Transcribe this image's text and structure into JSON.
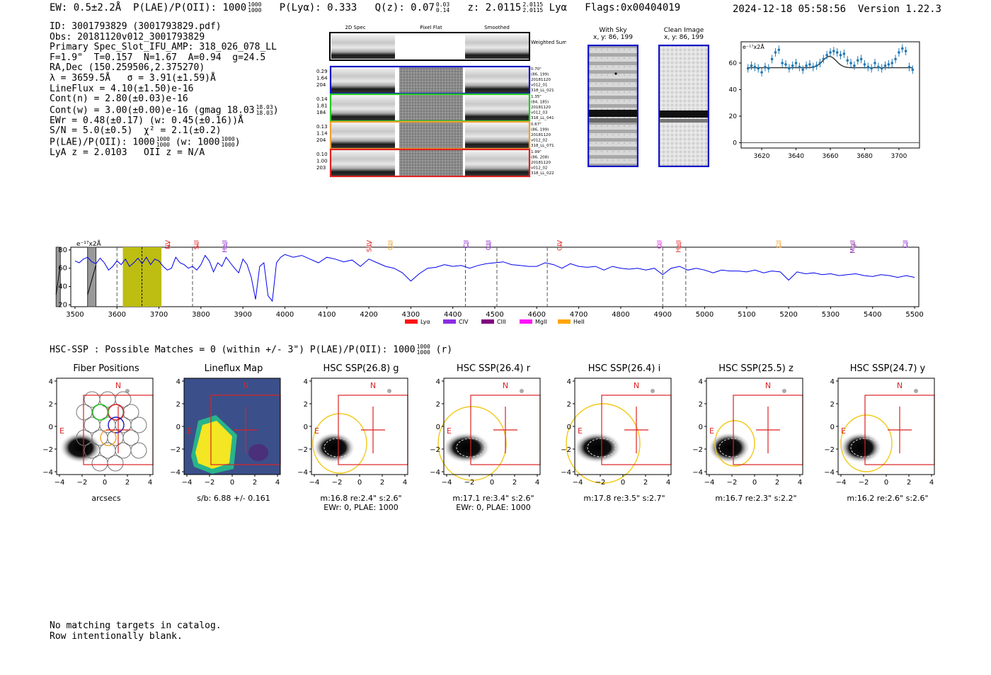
{
  "header": {
    "ew": "EW: 0.5±2.2Å",
    "plae_label": "P(LAE)/P(OII): 1000",
    "plae_hi": "1000",
    "plae_lo": "1000",
    "plya": "P(Lyα): 0.333",
    "qz_label": "Q(z): 0.07",
    "qz_hi": "0.03",
    "qz_lo": "0.14",
    "z_label": "z: 2.0115",
    "z_hi": "2.0115",
    "z_lo": "2.0115",
    "z_line": "Lyα",
    "flags": "Flags:0x00404019",
    "timestamp": "2024-12-18 05:58:56",
    "version": "Version 1.22.3"
  },
  "info": {
    "id": "ID: 3001793829 (3001793829.pdf)",
    "obs": "Obs: 20181120v012_3001793829",
    "primary": "Primary Spec_Slot_IFU_AMP: 318_026_078_LL",
    "params": "F=1.9\"  T=0.157  N=1.67  A=0.94  g=24.5",
    "radec": "RA,Dec (150.259506,2.375270)",
    "lambda": "λ = 3659.5Å   σ = 3.91(±1.59)Å",
    "lineflux": "LineFlux = 4.10(±1.50)e-16",
    "cont_n": "Cont(n) = 2.80(±0.03)e-16",
    "cont_w": "Cont(w) = 3.00(±0.00)e-16 (gmag 18.03",
    "cont_w_hi": "18.03",
    "cont_w_lo": "18.03",
    "cont_w_end": ")",
    "ewr": "EWr = 0.48(±0.17) (w: 0.45(±0.16))Å",
    "sn": "S/N = 5.0(±0.5)  χ² = 2.1(±0.2)",
    "plae": "P(LAE)/P(OII): 1000",
    "plae_hi": "1000",
    "plae_lo": "1000",
    "plae_w": "(w: 1000",
    "plae_w_hi": "1000",
    "plae_w_lo": "1000",
    "plae_w_end": ")",
    "lya_z": "LyA z = 2.0103   OII z = N/A"
  },
  "spec2d": {
    "col_headers": [
      "2D Spec",
      "Pixel Flat",
      "Smoothed"
    ],
    "weighted_label": "Weighted Sum",
    "rows": [
      {
        "left": [
          "0.29",
          "1.64",
          "204"
        ],
        "right": [
          "0.70\"",
          "(86, 199)",
          "20181120",
          "v012_01",
          "318_LL_021"
        ],
        "color": "#1414c8"
      },
      {
        "left": [
          "0.14",
          "1.81",
          "184"
        ],
        "right": [
          "1.35\"",
          "(84, 185)",
          "20181120",
          "v012_03",
          "318_LL_041"
        ],
        "color": "#22c922"
      },
      {
        "left": [
          "0.13",
          "1.14",
          "204"
        ],
        "right": [
          "0.67\"",
          "(86, 199)",
          "20181120",
          "v012_02",
          "318_LL_071"
        ],
        "color": "#f0a030"
      },
      {
        "left": [
          "0.10",
          "1.00",
          "203"
        ],
        "right": [
          "1.99\"",
          "(86, 208)",
          "20181120",
          "v012_02",
          "318_LL_022"
        ],
        "color": "#dd2222"
      }
    ]
  },
  "cutouts": {
    "with_sky_title": "With Sky",
    "with_sky_coords": "x, y: 86, 199",
    "clean_title": "Clean Image",
    "clean_coords": "x, y: 86, 199"
  },
  "zoom_chart": {
    "type": "scatter",
    "unit_label": "e⁻¹⁷x2Å",
    "xticks": [
      3620,
      3640,
      3660,
      3680,
      3700
    ],
    "yticks": [
      0,
      20,
      40,
      60
    ],
    "xlim": [
      3608,
      3712
    ],
    "ylim": [
      -4,
      76
    ],
    "x": [
      3612,
      3614,
      3616,
      3618,
      3620,
      3622,
      3624,
      3626,
      3628,
      3630,
      3632,
      3634,
      3636,
      3638,
      3640,
      3642,
      3644,
      3646,
      3648,
      3650,
      3652,
      3654,
      3656,
      3658,
      3660,
      3662,
      3664,
      3666,
      3668,
      3670,
      3672,
      3674,
      3676,
      3678,
      3680,
      3682,
      3684,
      3686,
      3688,
      3690,
      3692,
      3694,
      3696,
      3698,
      3700,
      3702,
      3704,
      3706,
      3708
    ],
    "y": [
      56,
      58,
      57,
      56,
      53,
      57,
      56,
      63,
      68,
      70,
      60,
      59,
      56,
      58,
      60,
      57,
      55,
      58,
      59,
      57,
      58,
      60,
      63,
      66,
      68,
      69,
      68,
      66,
      67,
      62,
      60,
      58,
      62,
      63,
      59,
      57,
      56,
      60,
      57,
      56,
      58,
      59,
      60,
      63,
      68,
      71,
      69,
      57,
      55
    ],
    "fit_baseline": 56.5,
    "fit_peak": 65,
    "fit_center": 3659.5,
    "fit_sigma": 3.91
  },
  "full_spectrum": {
    "type": "line",
    "unit_label": "e⁻¹⁷x2Å",
    "xticks": [
      3500,
      3600,
      3700,
      3800,
      3900,
      4000,
      4100,
      4200,
      4300,
      4400,
      4500,
      4600,
      4700,
      4800,
      4900,
      5000,
      5100,
      5200,
      5300,
      5400,
      5500
    ],
    "yticks": [
      20,
      40,
      60,
      80
    ],
    "xlim": [
      3490,
      5510
    ],
    "ylim": [
      18,
      83
    ],
    "highlight_range": [
      3614,
      3706
    ],
    "marker_line": 3659.5,
    "dashed_lines": [
      3600,
      3780,
      4430,
      4505,
      4625,
      4900,
      4955
    ],
    "hatched_bands": [
      [
        3530,
        3550
      ],
      [
        3455,
        3465
      ]
    ],
    "line_labels": [
      {
        "name": "NV",
        "x": 3726,
        "color": "#dd2222"
      },
      {
        "name": "SiII",
        "x": 3794,
        "color": "#dd2222"
      },
      {
        "name": "HeII",
        "x": 3862,
        "color": "#8822cc"
      },
      {
        "name": "SiIV",
        "x": 4206,
        "color": "#dd2222"
      },
      {
        "name": "CIII",
        "x": 4256,
        "color": "#f0a030"
      },
      {
        "name": "CII",
        "x": 4437,
        "color": "#8822cc"
      },
      {
        "name": "CIII",
        "x": 4490,
        "color": "#8822cc"
      },
      {
        "name": "CIV",
        "x": 4659,
        "color": "#dd2222"
      },
      {
        "name": "OII",
        "x": 4897,
        "color": "#ee22ee"
      },
      {
        "name": "HeII",
        "x": 4943,
        "color": "#dd2222"
      },
      {
        "name": "CII",
        "x": 5181,
        "color": "#f0a030"
      },
      {
        "name": "MgII",
        "x": 5357,
        "color": "#8822aa"
      },
      {
        "name": "CII",
        "x": 5483,
        "color": "#8822cc"
      }
    ],
    "legend": [
      {
        "name": "Lyα",
        "color": "#ff1111"
      },
      {
        "name": "CIV",
        "color": "#8b2be2"
      },
      {
        "name": "CIII",
        "color": "#800080"
      },
      {
        "name": "MgII",
        "color": "#ff11ff"
      },
      {
        "name": "HeII",
        "color": "#ffa500"
      }
    ],
    "x": [
      3500,
      3510,
      3520,
      3530,
      3540,
      3550,
      3560,
      3570,
      3580,
      3590,
      3600,
      3610,
      3620,
      3630,
      3640,
      3650,
      3660,
      3670,
      3680,
      3690,
      3700,
      3710,
      3720,
      3730,
      3740,
      3750,
      3760,
      3770,
      3780,
      3790,
      3800,
      3810,
      3820,
      3830,
      3840,
      3850,
      3860,
      3870,
      3880,
      3890,
      3900,
      3910,
      3920,
      3930,
      3940,
      3950,
      3960,
      3970,
      3980,
      3990,
      4000,
      4020,
      4040,
      4060,
      4080,
      4100,
      4120,
      4140,
      4160,
      4180,
      4200,
      4220,
      4240,
      4260,
      4280,
      4300,
      4320,
      4340,
      4360,
      4380,
      4400,
      4420,
      4440,
      4460,
      4480,
      4500,
      4520,
      4540,
      4560,
      4580,
      4600,
      4620,
      4640,
      4660,
      4680,
      4700,
      4720,
      4740,
      4760,
      4780,
      4800,
      4820,
      4840,
      4860,
      4880,
      4900,
      4920,
      4940,
      4960,
      4980,
      5000,
      5020,
      5040,
      5060,
      5080,
      5100,
      5120,
      5140,
      5160,
      5180,
      5200,
      5220,
      5240,
      5260,
      5280,
      5300,
      5320,
      5340,
      5360,
      5380,
      5400,
      5420,
      5440,
      5460,
      5480,
      5500
    ],
    "y": [
      68,
      66,
      70,
      72,
      67,
      65,
      71,
      66,
      58,
      62,
      68,
      64,
      70,
      62,
      66,
      71,
      65,
      72,
      64,
      70,
      68,
      62,
      58,
      60,
      72,
      66,
      64,
      60,
      62,
      58,
      64,
      74,
      68,
      56,
      66,
      62,
      72,
      66,
      60,
      55,
      70,
      64,
      50,
      26,
      62,
      66,
      30,
      24,
      66,
      72,
      75,
      72,
      74,
      70,
      66,
      72,
      70,
      67,
      69,
      62,
      70,
      66,
      62,
      60,
      55,
      46,
      54,
      60,
      61,
      64,
      62,
      63,
      60,
      63,
      65,
      66,
      67,
      64,
      63,
      62,
      62,
      66,
      64,
      60,
      65,
      62,
      61,
      62,
      58,
      62,
      60,
      59,
      60,
      58,
      60,
      53,
      60,
      62,
      58,
      60,
      58,
      55,
      58,
      57,
      57,
      56,
      58,
      55,
      57,
      56,
      47,
      56,
      54,
      55,
      53,
      54,
      52,
      53,
      54,
      52,
      51,
      53,
      52,
      50,
      52,
      50
    ]
  },
  "hsc_header": {
    "text": "HSC-SSP : Possible Matches = 0 (within +/- 3\")  P(LAE)/P(OII): 1000",
    "frac_hi": "1000",
    "frac_lo": "1000",
    "suffix": "(r)"
  },
  "panels": [
    {
      "title": "Fiber Positions",
      "caption1": "arcsecs",
      "caption2": ""
    },
    {
      "title": "Lineflux Map",
      "caption1": "s/b: 6.88 +/- 0.161",
      "caption2": ""
    },
    {
      "title": "HSC SSP(26.8) g",
      "caption1": "m:16.8  re:2.4\"  s:2.6\"",
      "caption2": "EWr: 0, PLAE: 1000"
    },
    {
      "title": "HSC SSP(26.4) r",
      "caption1": "m:17.1  re:3.4\"  s:2.6\"",
      "caption2": "EWr: 0, PLAE: 1000"
    },
    {
      "title": "HSC SSP(26.4) i",
      "caption1": "m:17.8  re:3.5\"  s:2.7\"",
      "caption2": ""
    },
    {
      "title": "HSC SSP(25.5) z",
      "caption1": "m:16.7  re:2.3\"  s:2.2\"",
      "caption2": ""
    },
    {
      "title": "HSC SSP(24.7) y",
      "caption1": "m:16.2  re:2.6\"  s:2.6\"",
      "caption2": ""
    }
  ],
  "panel_axes": {
    "xticks": [
      "−4",
      "−2",
      "0",
      "2",
      "4"
    ],
    "yticks": [
      "4",
      "2",
      "0",
      "−2",
      "−4"
    ],
    "north": "N",
    "east": "E"
  },
  "footer": {
    "line1": "No matching targets in catalog.",
    "line2": "Row intentionally blank."
  }
}
